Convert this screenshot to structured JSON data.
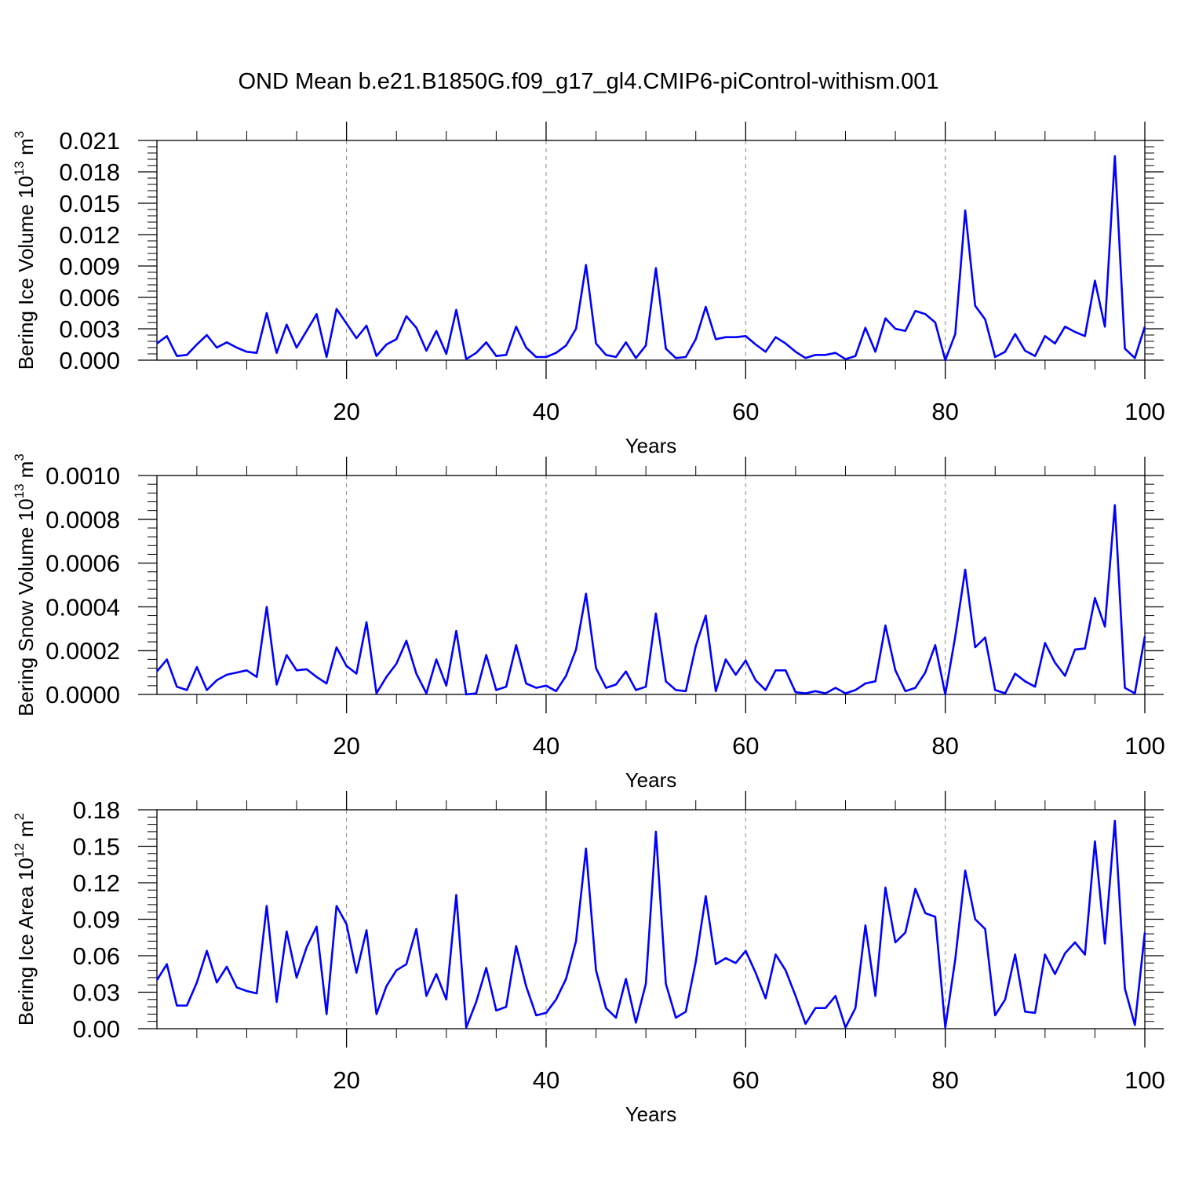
{
  "title": "OND Mean b.e21.B1850G.f09_g17_gl4.CMIP6-piControl-withism.001",
  "colors": {
    "line": "#0000ff",
    "axis": "#000000",
    "grid": "#888888"
  },
  "chart_data": [
    {
      "type": "line",
      "title": "",
      "xlabel": "Years",
      "ylabel": "Bering Ice Volume 10",
      "ylabel_sup": "13",
      "ylabel_unit": " m",
      "ylabel_unit_sup": "3",
      "xlim": [
        1,
        100
      ],
      "ylim": [
        0,
        0.021
      ],
      "xticks": [
        20,
        40,
        60,
        80,
        100
      ],
      "xtick_labels": [
        "20",
        "40",
        "60",
        "80",
        "100"
      ],
      "yticks": [
        0,
        0.003,
        0.006,
        0.009,
        0.012,
        0.015,
        0.018,
        0.021
      ],
      "ytick_labels": [
        "0.000",
        "0.003",
        "0.006",
        "0.009",
        "0.012",
        "0.015",
        "0.018",
        "0.021"
      ],
      "grid": "vertical dashed at major x ticks",
      "series": [
        {
          "x_start": 1,
          "values": [
            0.0016,
            0.0023,
            0.0004,
            0.0005,
            0.0015,
            0.0024,
            0.0012,
            0.0017,
            0.0012,
            0.0008,
            0.0007,
            0.0045,
            0.0007,
            0.0034,
            0.0012,
            0.0028,
            0.0044,
            0.0003,
            0.0049,
            0.0035,
            0.0021,
            0.0033,
            0.0004,
            0.0015,
            0.002,
            0.0042,
            0.0031,
            0.0009,
            0.0028,
            0.0006,
            0.0048,
            0.0001,
            0.0007,
            0.0017,
            0.0004,
            0.0005,
            0.0032,
            0.0012,
            0.0003,
            0.0003,
            0.0007,
            0.0014,
            0.003,
            0.0091,
            0.0016,
            0.0005,
            0.0003,
            0.0017,
            0.0002,
            0.0014,
            0.0088,
            0.0011,
            0.0002,
            0.0003,
            0.002,
            0.0051,
            0.002,
            0.0022,
            0.0022,
            0.0023,
            0.0015,
            0.0008,
            0.0022,
            0.0016,
            0.0008,
            0.0002,
            0.0005,
            0.0005,
            0.0007,
            0.0001,
            0.0004,
            0.0031,
            0.0008,
            0.004,
            0.003,
            0.0028,
            0.0047,
            0.0044,
            0.0036,
            0.0,
            0.0025,
            0.0143,
            0.0052,
            0.0039,
            0.0003,
            0.0008,
            0.0025,
            0.0009,
            0.0004,
            0.0023,
            0.0016,
            0.0032,
            0.0027,
            0.0023,
            0.0076,
            0.0032,
            0.0195,
            0.0011,
            0.0002,
            0.0032
          ]
        }
      ]
    },
    {
      "type": "line",
      "title": "",
      "xlabel": "Years",
      "ylabel": "Bering Snow Volume 10",
      "ylabel_sup": "13",
      "ylabel_unit": " m",
      "ylabel_unit_sup": "3",
      "xlim": [
        1,
        100
      ],
      "ylim": [
        0,
        0.001
      ],
      "xticks": [
        20,
        40,
        60,
        80,
        100
      ],
      "xtick_labels": [
        "20",
        "40",
        "60",
        "80",
        "100"
      ],
      "yticks": [
        0,
        0.0002,
        0.0004,
        0.0006,
        0.0008,
        0.001
      ],
      "ytick_labels": [
        "0.0000",
        "0.0002",
        "0.0004",
        "0.0006",
        "0.0008",
        "0.0010"
      ],
      "grid": "vertical dashed at major x ticks",
      "series": [
        {
          "x_start": 1,
          "values": [
            0.000105,
            0.00016,
            3.5e-05,
            2e-05,
            0.000125,
            2e-05,
            6.5e-05,
            9e-05,
            0.0001,
            0.00011,
            8e-05,
            0.0004,
            4.5e-05,
            0.00018,
            0.00011,
            0.000115,
            8e-05,
            5e-05,
            0.000215,
            0.00013,
            9.5e-05,
            0.00033,
            5e-06,
            8e-05,
            0.00014,
            0.000245,
            9.5e-05,
            5e-06,
            0.00016,
            4e-05,
            0.00029,
            0.0,
            5e-06,
            0.00018,
            2e-05,
            3.5e-05,
            0.000225,
            5e-05,
            3e-05,
            4e-05,
            1.5e-05,
            8.5e-05,
            0.000205,
            0.00046,
            0.00012,
            3e-05,
            4.5e-05,
            0.000105,
            2e-05,
            3.5e-05,
            0.00037,
            6e-05,
            2e-05,
            1.5e-05,
            0.00022,
            0.00036,
            1.5e-05,
            0.00016,
            9e-05,
            0.000155,
            6.5e-05,
            2e-05,
            0.00011,
            0.00011,
            1e-05,
            5e-06,
            1.5e-05,
            5e-06,
            3e-05,
            5e-06,
            2e-05,
            5e-05,
            6e-05,
            0.000315,
            0.00011,
            1.5e-05,
            3e-05,
            0.0001,
            0.000225,
            0.0,
            0.000265,
            0.00057,
            0.000215,
            0.00026,
            2e-05,
            5e-06,
            9.5e-05,
            6e-05,
            3.5e-05,
            0.000235,
            0.000145,
            8.5e-05,
            0.000205,
            0.00021,
            0.00044,
            0.00031,
            0.000865,
            3e-05,
            5e-06,
            0.000265
          ]
        }
      ]
    },
    {
      "type": "line",
      "title": "",
      "xlabel": "Years",
      "ylabel": "Bering Ice Area 10",
      "ylabel_sup": "12",
      "ylabel_unit": " m",
      "ylabel_unit_sup": "2",
      "xlim": [
        1,
        100
      ],
      "ylim": [
        0,
        0.18
      ],
      "xticks": [
        20,
        40,
        60,
        80,
        100
      ],
      "xtick_labels": [
        "20",
        "40",
        "60",
        "80",
        "100"
      ],
      "yticks": [
        0,
        0.03,
        0.06,
        0.09,
        0.12,
        0.15,
        0.18
      ],
      "ytick_labels": [
        "0.00",
        "0.03",
        "0.06",
        "0.09",
        "0.12",
        "0.15",
        "0.18"
      ],
      "grid": "vertical dashed at major x ticks",
      "series": [
        {
          "x_start": 1,
          "values": [
            0.04,
            0.053,
            0.019,
            0.019,
            0.038,
            0.064,
            0.038,
            0.051,
            0.034,
            0.031,
            0.029,
            0.101,
            0.022,
            0.08,
            0.042,
            0.067,
            0.084,
            0.012,
            0.101,
            0.086,
            0.046,
            0.081,
            0.012,
            0.035,
            0.048,
            0.053,
            0.082,
            0.027,
            0.045,
            0.024,
            0.11,
            0.001,
            0.022,
            0.05,
            0.015,
            0.018,
            0.068,
            0.035,
            0.011,
            0.013,
            0.024,
            0.041,
            0.072,
            0.148,
            0.048,
            0.017,
            0.009,
            0.041,
            0.005,
            0.037,
            0.162,
            0.037,
            0.009,
            0.014,
            0.055,
            0.109,
            0.053,
            0.058,
            0.054,
            0.064,
            0.046,
            0.025,
            0.061,
            0.048,
            0.027,
            0.004,
            0.017,
            0.017,
            0.027,
            0.001,
            0.017,
            0.085,
            0.027,
            0.116,
            0.071,
            0.079,
            0.115,
            0.095,
            0.092,
            0.001,
            0.057,
            0.13,
            0.09,
            0.082,
            0.011,
            0.024,
            0.061,
            0.014,
            0.013,
            0.061,
            0.045,
            0.062,
            0.071,
            0.061,
            0.154,
            0.07,
            0.171,
            0.033,
            0.003,
            0.079
          ]
        }
      ]
    }
  ]
}
